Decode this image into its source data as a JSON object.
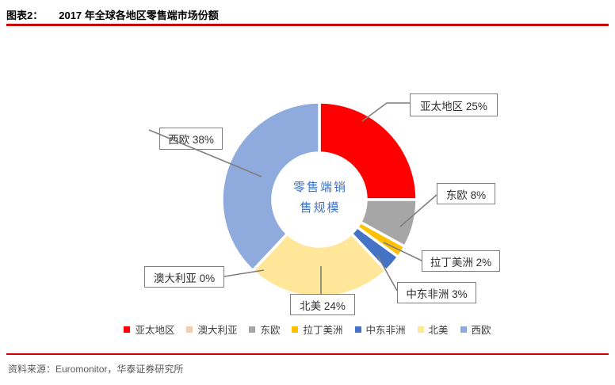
{
  "header": {
    "label": "图表2：",
    "title": "2017 年全球各地区零售端市场份额"
  },
  "chart_data": {
    "type": "pie",
    "subtype": "donut",
    "title": "2017 年全球各地区零售端市场份额",
    "center_label": {
      "line1": "零售端销",
      "line2": "售规模"
    },
    "slices": [
      {
        "name": "亚太地区",
        "value": 25,
        "color": "#FF0000"
      },
      {
        "name": "澳大利亚",
        "value": 0,
        "color": "#F8CBAD"
      },
      {
        "name": "东欧",
        "value": 8,
        "color": "#A6A6A6"
      },
      {
        "name": "拉丁美洲",
        "value": 2,
        "color": "#FFC000"
      },
      {
        "name": "中东非洲",
        "value": 3,
        "color": "#4472C4"
      },
      {
        "name": "北美",
        "value": 24,
        "color": "#FFE699"
      },
      {
        "name": "西欧",
        "value": 38,
        "color": "#8FAADC"
      }
    ],
    "draw_order": [
      0,
      2,
      3,
      4,
      5,
      1,
      6
    ],
    "start_angle_deg": 0,
    "direction": "clockwise",
    "legend_position": "bottom",
    "callouts": [
      {
        "text": "亚太地区 25%"
      },
      {
        "text": "东欧 8%"
      },
      {
        "text": "拉丁美洲 2%"
      },
      {
        "text": "中东非洲 3%"
      },
      {
        "text": "北美 24%"
      },
      {
        "text": "澳大利亚 0%"
      },
      {
        "text": "西欧 38%"
      }
    ],
    "colors": {
      "rule_red": "#CC0000",
      "callout_border": "#7F7F7F",
      "leader_line": "#7F7F7F",
      "center_text": "#4472C4",
      "source_text": "#595959"
    }
  },
  "footer": {
    "source": "资料来源：Euromonitor，华泰证券研究所"
  }
}
